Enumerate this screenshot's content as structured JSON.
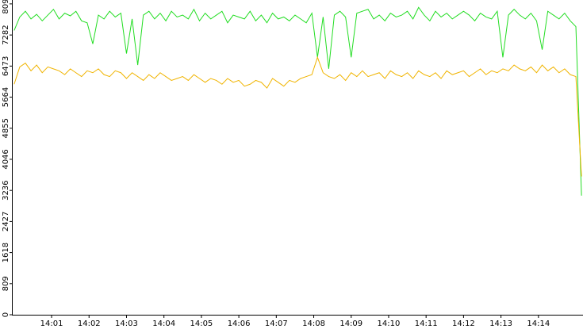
{
  "chart_data": {
    "type": "line",
    "x": [
      0,
      0.15,
      0.3,
      0.45,
      0.6,
      0.75,
      0.9,
      1.05,
      1.2,
      1.35,
      1.5,
      1.65,
      1.8,
      1.95,
      2.1,
      2.25,
      2.4,
      2.55,
      2.7,
      2.85,
      3,
      3.15,
      3.3,
      3.45,
      3.6,
      3.75,
      3.9,
      4.05,
      4.2,
      4.35,
      4.5,
      4.65,
      4.8,
      4.95,
      5.1,
      5.25,
      5.4,
      5.55,
      5.7,
      5.85,
      6,
      6.15,
      6.3,
      6.45,
      6.6,
      6.75,
      6.9,
      7.05,
      7.2,
      7.35,
      7.5,
      7.65,
      7.8,
      7.95,
      8.1,
      8.25,
      8.4,
      8.55,
      8.7,
      8.85,
      9,
      9.15,
      9.3,
      9.45,
      9.6,
      9.75,
      9.9,
      10.05,
      10.2,
      10.35,
      10.5,
      10.65,
      10.8,
      10.95,
      11.1,
      11.25,
      11.4,
      11.55,
      11.7,
      11.85,
      12,
      12.15,
      12.3,
      12.45,
      12.6,
      12.75,
      12.9,
      13.05,
      13.2,
      13.35,
      13.5,
      13.65,
      13.8,
      13.95,
      14.1,
      14.25,
      14.4,
      14.55,
      14.7,
      14.85,
      15,
      15.15
    ],
    "series": [
      {
        "color": "#22dd22",
        "values": [
          7400,
          7750,
          7900,
          7700,
          7820,
          7650,
          7800,
          7950,
          7700,
          7850,
          7780,
          7900,
          7650,
          7600,
          7050,
          7800,
          7700,
          7900,
          7750,
          7850,
          6800,
          7700,
          6500,
          7800,
          7900,
          7700,
          7850,
          7650,
          7900,
          7750,
          7800,
          7700,
          7950,
          7650,
          7850,
          7700,
          7800,
          7900,
          7600,
          7800,
          7750,
          7700,
          7900,
          7650,
          7800,
          7600,
          7850,
          7700,
          7750,
          7650,
          7800,
          7700,
          7600,
          7850,
          6700,
          7750,
          6400,
          7800,
          7900,
          7750,
          6700,
          7850,
          7900,
          7950,
          7700,
          7800,
          7650,
          7850,
          7750,
          7800,
          7900,
          7700,
          8000,
          7800,
          7650,
          7900,
          7750,
          7850,
          7700,
          7800,
          7900,
          7800,
          7650,
          7850,
          7750,
          7700,
          7900,
          6700,
          7800,
          7950,
          7800,
          7700,
          7850,
          7650,
          6900,
          7900,
          7800,
          7700,
          7850,
          7650,
          7500,
          3100
        ]
      },
      {
        "color": "#f0b400",
        "values": [
          6000,
          6450,
          6550,
          6350,
          6500,
          6300,
          6450,
          6400,
          6350,
          6250,
          6400,
          6300,
          6200,
          6350,
          6300,
          6400,
          6250,
          6200,
          6350,
          6300,
          6150,
          6300,
          6200,
          6100,
          6250,
          6150,
          6300,
          6200,
          6100,
          6150,
          6200,
          6100,
          6250,
          6150,
          6050,
          6150,
          6100,
          6000,
          6150,
          6050,
          6100,
          5950,
          6000,
          6100,
          6050,
          5900,
          6150,
          6050,
          5950,
          6100,
          6050,
          6150,
          6200,
          6250,
          6700,
          6300,
          6200,
          6150,
          6250,
          6100,
          6300,
          6200,
          6350,
          6200,
          6250,
          6300,
          6150,
          6350,
          6250,
          6200,
          6300,
          6150,
          6350,
          6250,
          6200,
          6300,
          6150,
          6350,
          6250,
          6300,
          6350,
          6200,
          6300,
          6400,
          6250,
          6350,
          6300,
          6400,
          6350,
          6500,
          6400,
          6350,
          6450,
          6300,
          6500,
          6350,
          6450,
          6300,
          6400,
          6250,
          6200,
          3600
        ]
      }
    ],
    "xlim": [
      -0.06,
      15.19
    ],
    "xticks": [
      {
        "value": 1,
        "label": "14:01"
      },
      {
        "value": 2,
        "label": "14:02"
      },
      {
        "value": 3,
        "label": "14:03"
      },
      {
        "value": 4,
        "label": "14:04"
      },
      {
        "value": 5,
        "label": "14:05"
      },
      {
        "value": 6,
        "label": "14:06"
      },
      {
        "value": 7,
        "label": "14:07"
      },
      {
        "value": 8,
        "label": "14:08"
      },
      {
        "value": 9,
        "label": "14:09"
      },
      {
        "value": 10,
        "label": "14:10"
      },
      {
        "value": 11,
        "label": "14:11"
      },
      {
        "value": 12,
        "label": "14:12"
      },
      {
        "value": 13,
        "label": "14:13"
      },
      {
        "value": 14,
        "label": "14:14"
      }
    ],
    "ylim": [
      0,
      8193
    ],
    "yticks": [
      0,
      809,
      1618,
      2427,
      3236,
      4046,
      4855,
      5664,
      6473,
      7282,
      8092
    ]
  }
}
